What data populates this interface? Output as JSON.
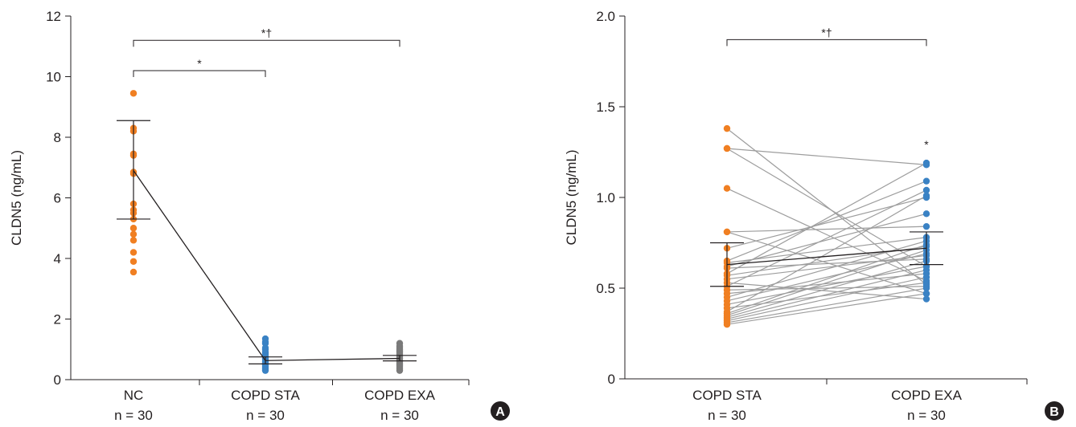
{
  "colors": {
    "orange": "#f07f22",
    "blue": "#3a82c4",
    "gray": "#7a7a7a",
    "pair_line": "#9d9d9d",
    "axis": "#231f20"
  },
  "chart_data": [
    {
      "type": "scatter",
      "panel": "A",
      "ylabel": "CLDN5 (ng/mL)",
      "ylim": [
        0,
        12
      ],
      "yticks": [
        "0",
        "2",
        "4",
        "6",
        "8",
        "10",
        "12"
      ],
      "categories": [
        "NC",
        "COPD STA",
        "COPD EXA"
      ],
      "sample_sizes": [
        "n = 30",
        "n = 30",
        "n = 30"
      ],
      "series": [
        {
          "category": "NC",
          "color": "orange",
          "values": [
            9.45,
            8.3,
            8.2,
            7.45,
            7.4,
            6.85,
            6.8,
            5.8,
            5.6,
            5.5,
            5.3,
            5.0,
            4.8,
            4.6,
            4.2,
            3.9,
            3.55
          ]
        },
        {
          "category": "COPD STA",
          "color": "blue",
          "values": [
            1.35,
            1.25,
            1.2,
            1.05,
            1.0,
            0.9,
            0.85,
            0.8,
            0.75,
            0.7,
            0.65,
            0.6,
            0.55,
            0.5,
            0.45,
            0.4,
            0.35,
            0.3
          ]
        },
        {
          "category": "COPD EXA",
          "color": "gray",
          "values": [
            1.2,
            1.1,
            1.05,
            1.0,
            0.95,
            0.9,
            0.85,
            0.8,
            0.75,
            0.7,
            0.65,
            0.6,
            0.55,
            0.5,
            0.45,
            0.4,
            0.35,
            0.3
          ]
        }
      ],
      "summary": [
        {
          "category": "NC",
          "mean": 6.9,
          "lower": 5.3,
          "upper": 8.55
        },
        {
          "category": "COPD STA",
          "mean": 0.63,
          "lower": 0.52,
          "upper": 0.75
        },
        {
          "category": "COPD EXA",
          "mean": 0.7,
          "lower": 0.62,
          "upper": 0.8
        }
      ],
      "brackets": [
        {
          "from": 0,
          "to": 1,
          "y": 10.2,
          "label": "*"
        },
        {
          "from": 0,
          "to": 2,
          "y": 11.2,
          "label": "*†"
        }
      ],
      "badge": "A"
    },
    {
      "type": "line",
      "panel": "B",
      "ylabel": "CLDN5 (ng/mL)",
      "ylim": [
        0,
        2.0
      ],
      "yticks": [
        "0",
        "0.5",
        "1.0",
        "1.5",
        "2.0"
      ],
      "categories": [
        "COPD STA",
        "COPD EXA"
      ],
      "sample_sizes": [
        "n = 30",
        "n = 30"
      ],
      "pairs": [
        [
          1.38,
          0.52
        ],
        [
          1.27,
          1.18
        ],
        [
          1.27,
          0.62
        ],
        [
          1.05,
          0.54
        ],
        [
          0.81,
          0.84
        ],
        [
          0.81,
          0.47
        ],
        [
          0.72,
          1.0
        ],
        [
          0.65,
          1.09
        ],
        [
          0.64,
          0.78
        ],
        [
          0.62,
          0.91
        ],
        [
          0.61,
          0.66
        ],
        [
          0.58,
          1.19
        ],
        [
          0.57,
          0.73
        ],
        [
          0.55,
          0.68
        ],
        [
          0.53,
          0.44
        ],
        [
          0.51,
          1.04
        ],
        [
          0.49,
          0.51
        ],
        [
          0.47,
          0.58
        ],
        [
          0.45,
          0.76
        ],
        [
          0.43,
          0.69
        ],
        [
          0.41,
          0.62
        ],
        [
          0.39,
          0.53
        ],
        [
          0.37,
          1.01
        ],
        [
          0.35,
          0.71
        ],
        [
          0.34,
          0.65
        ],
        [
          0.33,
          0.6
        ],
        [
          0.32,
          0.56
        ],
        [
          0.31,
          0.5
        ],
        [
          0.3,
          0.47
        ],
        [
          0.36,
          0.74
        ]
      ],
      "summary": [
        {
          "category": "COPD STA",
          "mean": 0.63,
          "lower": 0.51,
          "upper": 0.75
        },
        {
          "category": "COPD EXA",
          "mean": 0.72,
          "lower": 0.63,
          "upper": 0.81
        }
      ],
      "brackets": [
        {
          "from": 0,
          "to": 1,
          "y": 1.87,
          "label": "*†"
        }
      ],
      "point_marks": [
        {
          "category": 1,
          "y": 1.27,
          "label": "*"
        }
      ],
      "badge": "B"
    }
  ]
}
